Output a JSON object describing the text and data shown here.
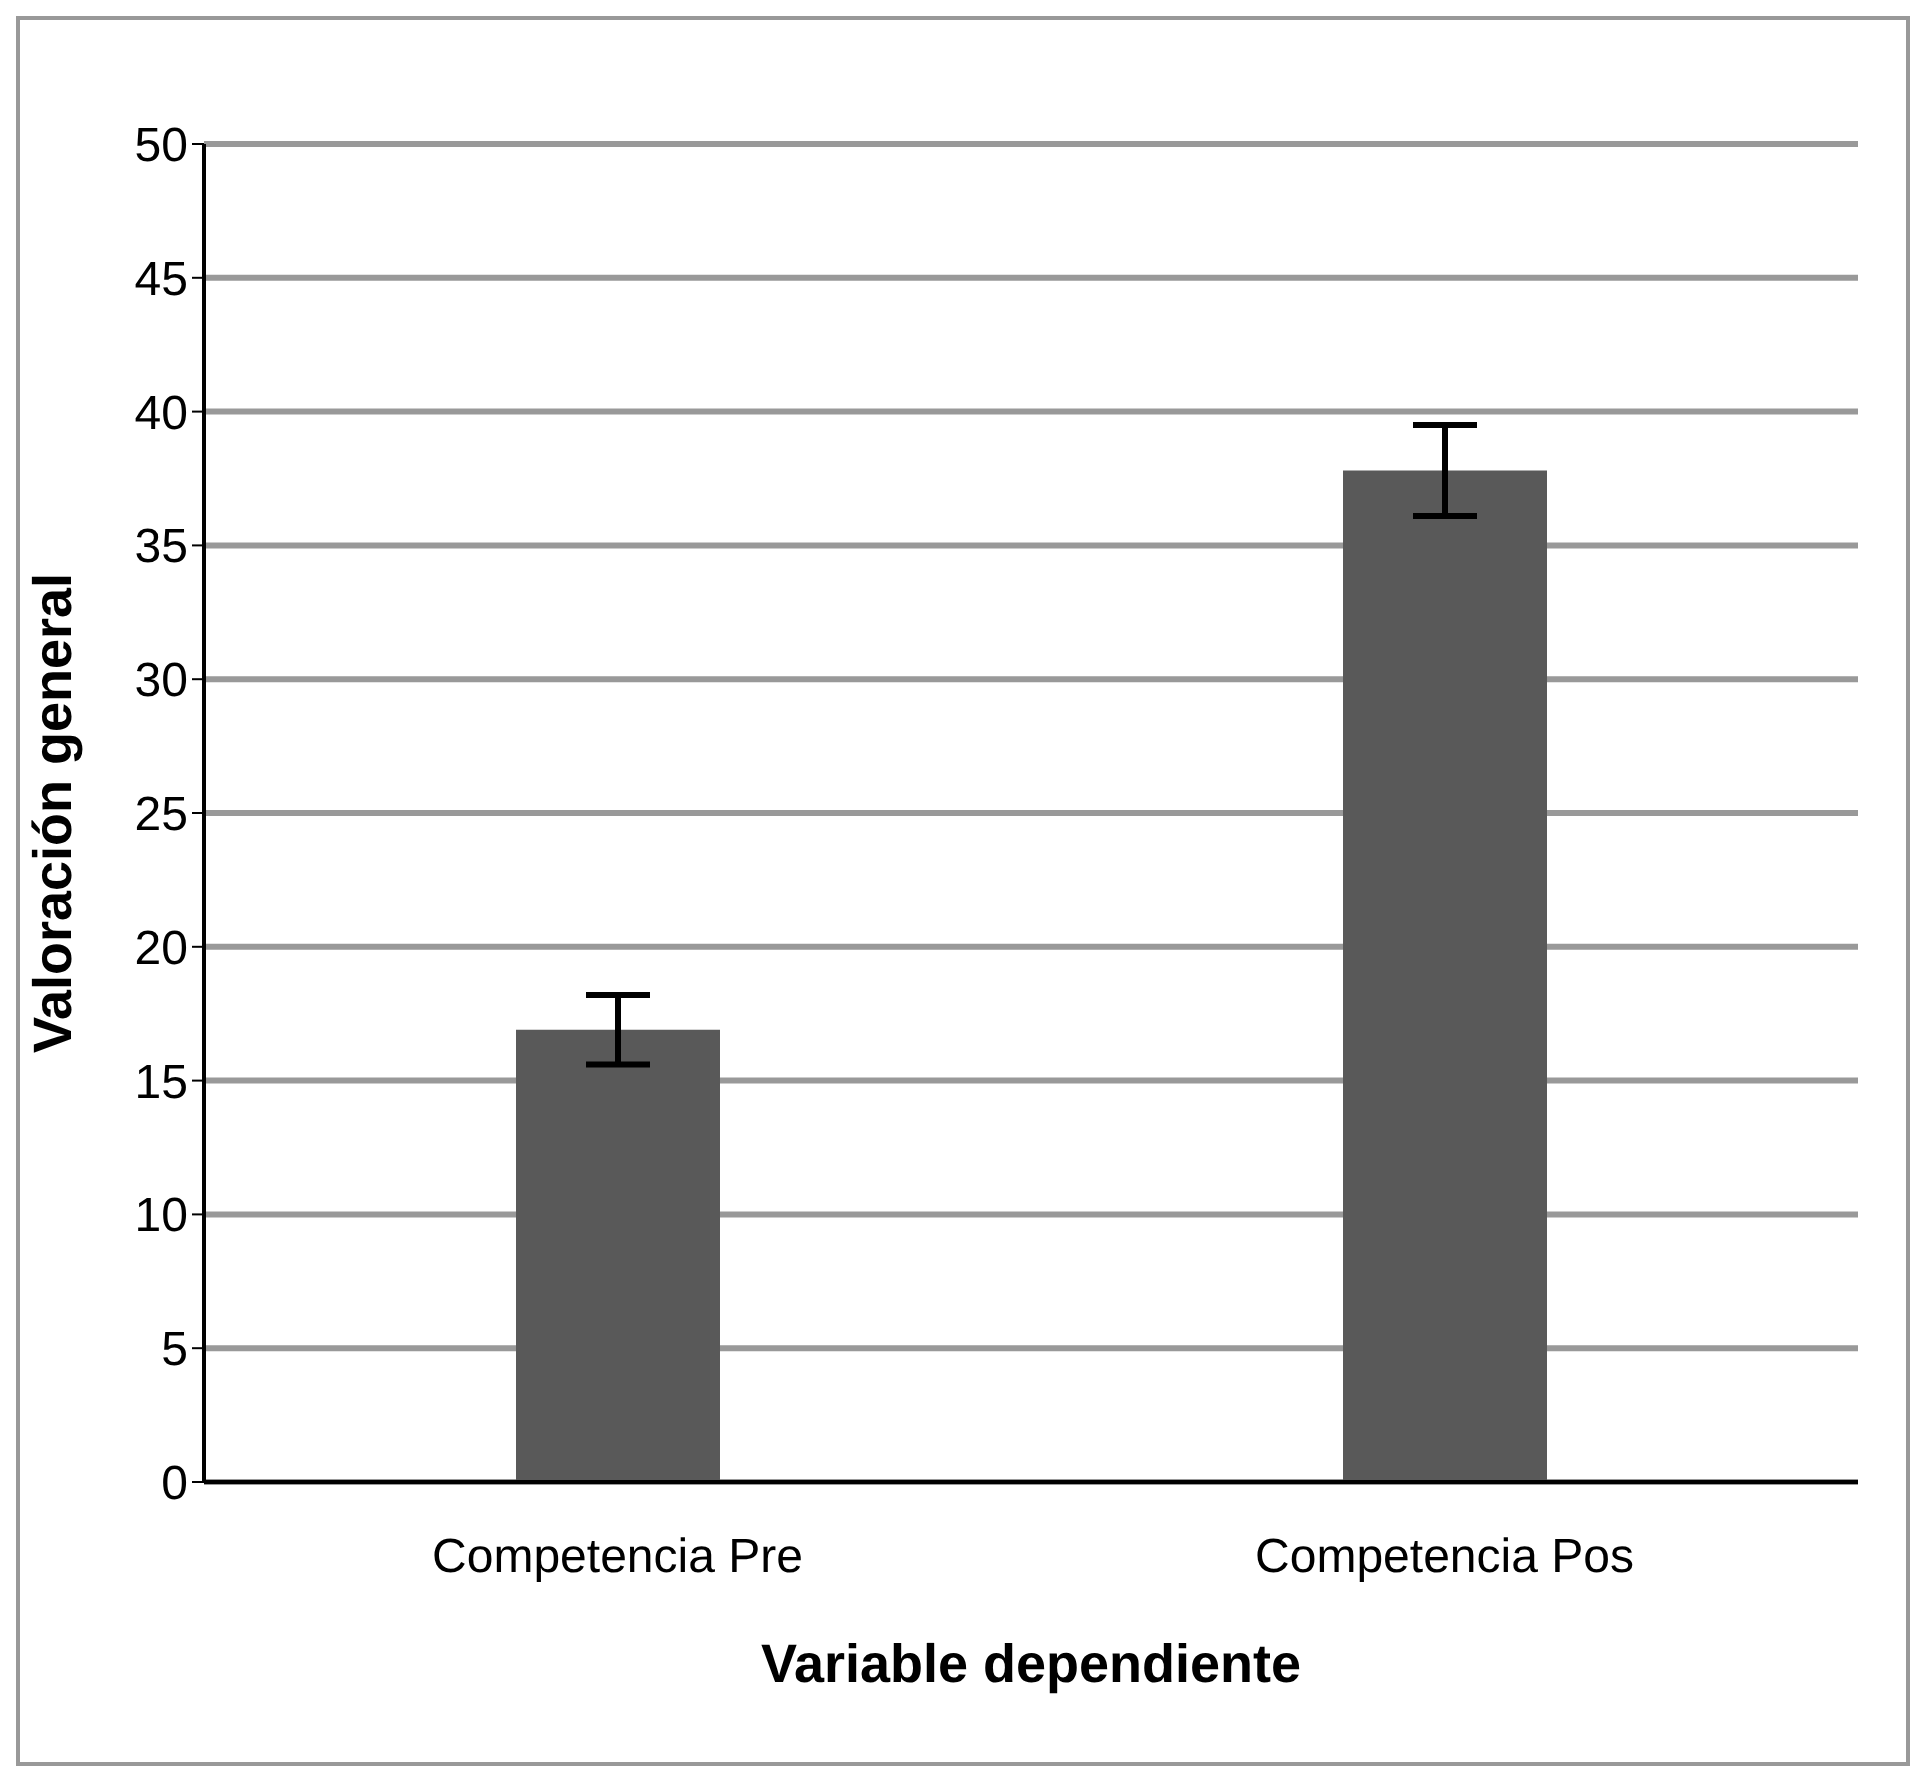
{
  "chart_data": {
    "type": "bar",
    "xlabel": "Variable dependiente",
    "ylabel": "Valoración general",
    "categories": [
      "Competencia Pre",
      "Competencia Pos"
    ],
    "values": [
      16.9,
      37.8
    ],
    "errors": [
      1.3,
      1.7
    ],
    "color": "#595959",
    "ylim": [
      0,
      50
    ],
    "yticks": [
      0,
      5,
      10,
      15,
      20,
      25,
      30,
      35,
      40,
      45,
      50
    ],
    "grid": "y"
  }
}
